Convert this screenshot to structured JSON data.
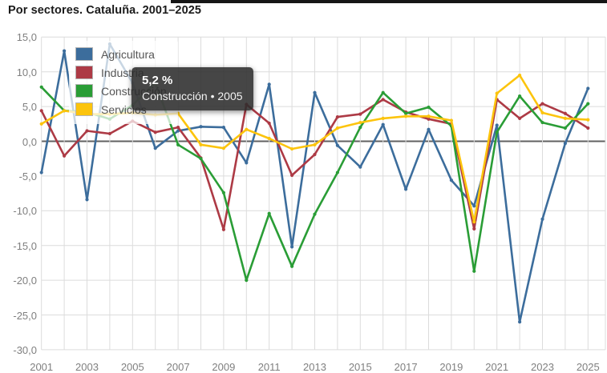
{
  "header": {
    "title": "Por sectores. Cataluña. 2001–2025"
  },
  "tooltip": {
    "value": "5,2 %",
    "label": "Construcción • 2005"
  },
  "legend": [
    {
      "label": "Agricultura",
      "color": "#3c6d9c"
    },
    {
      "label": "Industria",
      "color": "#ad3a45"
    },
    {
      "label": "Construcción",
      "color": "#2a9d36"
    },
    {
      "label": "Servicios",
      "color": "#fcc40d"
    }
  ],
  "chart_data": {
    "type": "line",
    "title": "Por sectores. Cataluña. 2001–2025",
    "x": [
      2001,
      2002,
      2003,
      2004,
      2005,
      2006,
      2007,
      2008,
      2009,
      2010,
      2011,
      2012,
      2013,
      2014,
      2015,
      2016,
      2017,
      2018,
      2019,
      2020,
      2021,
      2022,
      2023,
      2024,
      2025
    ],
    "series": [
      {
        "name": "Agricultura",
        "color": "#3c6d9c",
        "values": [
          -4.5,
          13.0,
          -8.4,
          14.0,
          8.4,
          -1.0,
          1.5,
          2.1,
          2.0,
          -3.1,
          8.2,
          -15.2,
          7.0,
          -0.6,
          -3.7,
          2.4,
          -6.9,
          1.7,
          -5.6,
          -9.3,
          2.3,
          -26.0,
          -11.2,
          -0.3,
          7.6
        ]
      },
      {
        "name": "Industria",
        "color": "#ad3a45",
        "values": [
          4.4,
          -2.1,
          1.5,
          1.1,
          2.9,
          1.3,
          2.0,
          -2.4,
          -12.7,
          5.3,
          2.6,
          -4.9,
          -1.9,
          3.5,
          3.9,
          6.0,
          4.2,
          3.2,
          2.5,
          -12.6,
          6.0,
          3.3,
          5.4,
          4.0,
          1.9
        ]
      },
      {
        "name": "Construcción",
        "color": "#2a9d36",
        "values": [
          7.8,
          4.4,
          4.2,
          3.2,
          5.2,
          8.4,
          -0.5,
          -2.5,
          -7.4,
          -20.0,
          -10.4,
          -18.0,
          -10.5,
          -4.5,
          2.0,
          7.0,
          4.0,
          4.9,
          2.2,
          -18.7,
          1.3,
          6.5,
          2.7,
          1.9,
          5.4
        ]
      },
      {
        "name": "Servicios",
        "color": "#fcc40d",
        "values": [
          2.5,
          4.4,
          3.9,
          3.9,
          4.1,
          3.8,
          4.0,
          -0.5,
          -1.0,
          1.7,
          0.4,
          -1.1,
          -0.5,
          1.9,
          2.7,
          3.3,
          3.6,
          3.6,
          3.0,
          -11.6,
          6.9,
          9.5,
          4.1,
          3.3,
          3.1
        ]
      }
    ],
    "ylim": [
      -30,
      15
    ],
    "yticks": [
      {
        "value": 15,
        "label": "15,0"
      },
      {
        "value": 10,
        "label": "10,0"
      },
      {
        "value": 5,
        "label": "5,0"
      },
      {
        "value": 0,
        "label": "0,0"
      },
      {
        "value": -5,
        "label": "-5,0"
      },
      {
        "value": -10,
        "label": "-10,0"
      },
      {
        "value": -15,
        "label": "-15,0"
      },
      {
        "value": -20,
        "label": "-20,0"
      },
      {
        "value": -25,
        "label": "-25,0"
      },
      {
        "value": -30,
        "label": "-30,0"
      }
    ],
    "xtick_labels": [
      "2001",
      "2003",
      "2005",
      "2007",
      "2009",
      "2011",
      "2013",
      "2015",
      "2017",
      "2019",
      "2021",
      "2023",
      "2025"
    ],
    "grid": true,
    "legend_position": "top-left",
    "tooltip_point": {
      "series": "Construcción",
      "year": 2005,
      "value_label": "5,2 %"
    }
  }
}
